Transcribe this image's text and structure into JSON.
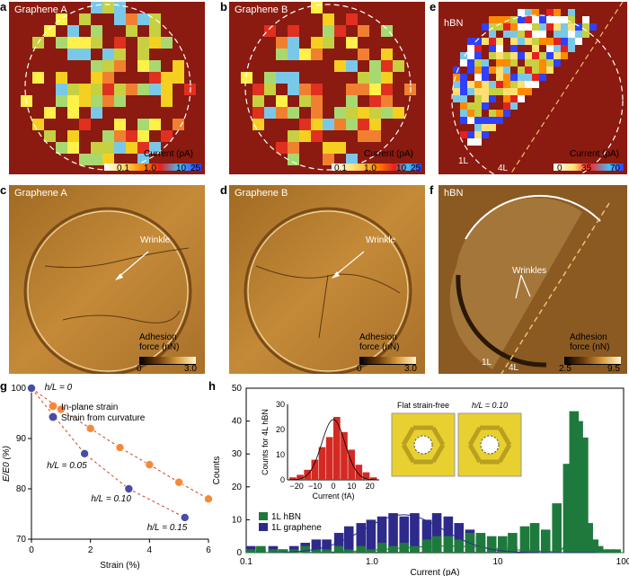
{
  "panel_labels": {
    "a": "a",
    "b": "b",
    "c": "c",
    "d": "d",
    "e": "e",
    "f": "f",
    "g": "g",
    "h": "h"
  },
  "panel_a": {
    "title": "Graphene A",
    "colorbar_title": "Current (pA)",
    "ticks": [
      "0.1",
      "1.0",
      "10",
      "25"
    ]
  },
  "panel_b": {
    "title": "Graphene B",
    "colorbar_title": "Current (pA)",
    "ticks": [
      "0.1",
      "1.0",
      "10",
      "25"
    ]
  },
  "panel_e": {
    "title": "hBN",
    "colorbar_title": "Current (pA)",
    "ticks": [
      "0",
      "35",
      "70"
    ],
    "label_1L": "1L",
    "label_4L": "4L"
  },
  "panel_c": {
    "title": "Graphene A",
    "annotation": "Wrinkle",
    "colorbar_title_1": "Adhesion",
    "colorbar_title_2": "force (nN)",
    "ticks": [
      "0",
      "3.0"
    ]
  },
  "panel_d": {
    "title": "Graphene B",
    "annotation": "Wrinkle",
    "colorbar_title_1": "Adhesion",
    "colorbar_title_2": "force (nN)",
    "ticks": [
      "0",
      "3.0"
    ]
  },
  "panel_f": {
    "title": "hBN",
    "annotation": "Wrinkles",
    "colorbar_title_1": "Adhesion",
    "colorbar_title_2": "force (nN)",
    "ticks": [
      "2.5",
      "9.5"
    ],
    "label_1L": "1L",
    "label_4L": "4L"
  },
  "colors": {
    "map_background": "#8b1a10",
    "orange_series": "#f5893a",
    "blue_series": "#4a4aa8",
    "green_bars": "#1e7a3c",
    "navy_bars": "#2e2a8c",
    "red_bars": "#d42a24"
  },
  "chart_data": [
    {
      "type": "scatter",
      "panel": "g",
      "xlabel": "Strain (%)",
      "ylabel": "E/E0 (%)",
      "xlim": [
        0,
        6
      ],
      "ylim": [
        70,
        100
      ],
      "xticks": [
        "0",
        "2",
        "4",
        "6"
      ],
      "yticks": [
        "70",
        "80",
        "90",
        "100"
      ],
      "series": [
        {
          "name": "In-plane strain",
          "x": [
            0,
            1,
            2,
            3,
            4,
            5,
            6
          ],
          "y": [
            100,
            95.8,
            92,
            88.2,
            84.8,
            81.3,
            78
          ]
        },
        {
          "name": "Strain from curvature",
          "x": [
            0,
            1.8,
            3.3,
            5.2
          ],
          "y": [
            100,
            87,
            80,
            74.3
          ]
        }
      ],
      "annotations": [
        {
          "text": "h/L = 0",
          "x": 0.2,
          "y": 100
        },
        {
          "text": "h/L = 0.05",
          "x": 1.8,
          "y": 87
        },
        {
          "text": "h/L = 0.10",
          "x": 3.3,
          "y": 80
        },
        {
          "text": "h/L = 0.15",
          "x": 5.2,
          "y": 74.3
        }
      ]
    },
    {
      "type": "bar",
      "panel": "h",
      "xlabel": "Current (pA)",
      "ylabel": "Counts",
      "xscale": "log",
      "xlim": [
        0.1,
        100
      ],
      "ylim": [
        0,
        50
      ],
      "xticks": [
        "0.1",
        "1.0",
        "10",
        "100"
      ],
      "yticks": [
        "0",
        "10",
        "20",
        "30",
        "40",
        "50"
      ],
      "series": [
        {
          "name": "1L hBN",
          "x": [
            0.1,
            0.12,
            0.15,
            0.18,
            0.22,
            0.27,
            0.33,
            0.4,
            0.5,
            0.6,
            0.75,
            0.9,
            1.1,
            1.35,
            1.65,
            2.0,
            2.5,
            3.0,
            3.7,
            4.5,
            5.5,
            6.7,
            8.2,
            10,
            12,
            15,
            18,
            22,
            27,
            33,
            37,
            40,
            44,
            48,
            53,
            58,
            65,
            72,
            80,
            90
          ],
          "y": [
            1,
            2,
            1,
            1,
            1,
            2,
            1,
            1,
            2,
            1,
            2,
            1,
            3,
            2,
            3,
            2,
            4,
            5,
            5,
            4,
            6,
            6,
            5,
            5,
            6,
            8,
            9,
            7,
            15,
            27,
            43,
            40,
            35,
            9,
            4,
            2,
            1,
            1,
            1,
            0
          ]
        },
        {
          "name": "1L graphene",
          "x": [
            0.1,
            0.12,
            0.15,
            0.18,
            0.22,
            0.27,
            0.33,
            0.4,
            0.5,
            0.6,
            0.75,
            0.9,
            1.1,
            1.35,
            1.65,
            2.0,
            2.5,
            3.0,
            3.7,
            4.5,
            5.5,
            6.7,
            8.2,
            10,
            12,
            15,
            18,
            22
          ],
          "y": [
            2,
            1,
            2,
            1,
            2,
            3,
            4,
            4,
            6,
            8,
            9,
            10,
            11,
            12,
            11,
            12,
            10,
            12,
            11,
            9,
            7,
            5,
            4,
            3,
            2,
            1,
            1,
            0
          ]
        }
      ]
    },
    {
      "type": "bar",
      "panel": "h-inset",
      "xlabel": "Current (fA)",
      "ylabel": "Counts for 4L hBN",
      "xlim": [
        -25,
        25
      ],
      "ylim": [
        0,
        30
      ],
      "xticks": [
        "−20",
        "−10",
        "0",
        "10",
        "20"
      ],
      "yticks": [
        "0",
        "10",
        "20",
        "30"
      ],
      "x": [
        -22,
        -18,
        -14,
        -10,
        -6,
        -2,
        2,
        6,
        10,
        14,
        18,
        22
      ],
      "values": [
        1,
        2,
        4,
        8,
        13,
        17,
        25,
        19,
        12,
        6,
        3,
        1
      ]
    }
  ],
  "legend_g": [
    "In-plane strain",
    "Strain from curvature"
  ],
  "legend_h": [
    "1L hBN",
    "1L graphene"
  ],
  "inset_titles": {
    "flat": "Flat strain-free",
    "hl": "h/L = 0.10"
  }
}
